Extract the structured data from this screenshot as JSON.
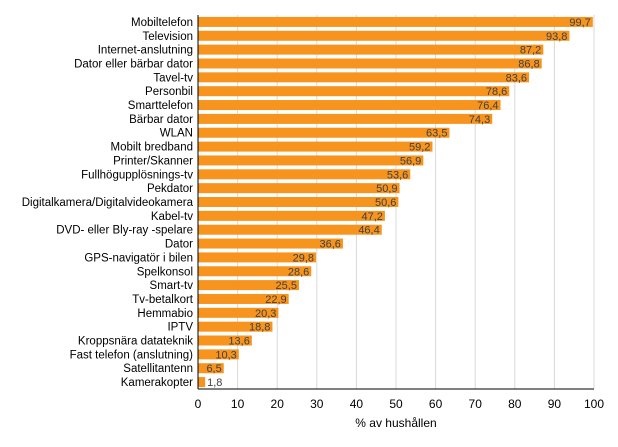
{
  "chart_data": {
    "type": "bar",
    "orientation": "horizontal",
    "xlabel": "% av hushållen",
    "xlim": [
      0,
      100
    ],
    "xticks": [
      0,
      10,
      20,
      30,
      40,
      50,
      60,
      70,
      80,
      90,
      100
    ],
    "grid": "vertical",
    "bar_color": "#F7941D",
    "categories": [
      "Mobiltelefon",
      "Television",
      "Internet-anslutning",
      "Dator eller bärbar dator",
      "Tavel-tv",
      "Personbil",
      "Smarttelefon",
      "Bärbar dator",
      "WLAN",
      "Mobilt bredband",
      "Printer/Skanner",
      "Fullhögupplösnings-tv",
      "Pekdator",
      "Digitalkamera/Digitalvideokamera",
      "Kabel-tv",
      "DVD- eller Bly-ray -spelare",
      "Dator",
      "GPS-navigatör i bilen",
      "Spelkonsol",
      "Smart-tv",
      "Tv-betalkort",
      "Hemmabio",
      "IPTV",
      "Kroppsnära datateknik",
      "Fast telefon (anslutning)",
      "Satellitantenn",
      "Kamerakopter"
    ],
    "values": [
      99.7,
      93.8,
      87.2,
      86.8,
      83.6,
      78.6,
      76.4,
      74.3,
      63.5,
      59.2,
      56.9,
      53.6,
      50.9,
      50.6,
      47.2,
      46.4,
      36.6,
      29.8,
      28.6,
      25.5,
      22.9,
      20.3,
      18.8,
      13.6,
      10.3,
      6.5,
      1.8
    ],
    "data_labels": [
      "99,7",
      "93,8",
      "87,2",
      "86,8",
      "83,6",
      "78,6",
      "76,4",
      "74,3",
      "63,5",
      "59,2",
      "56,9",
      "53,6",
      "50,9",
      "50,6",
      "47,2",
      "46,4",
      "36,6",
      "29,8",
      "28,6",
      "25,5",
      "22,9",
      "20,3",
      "18,8",
      "13,6",
      "10,3",
      "6,5",
      "1,8"
    ]
  }
}
